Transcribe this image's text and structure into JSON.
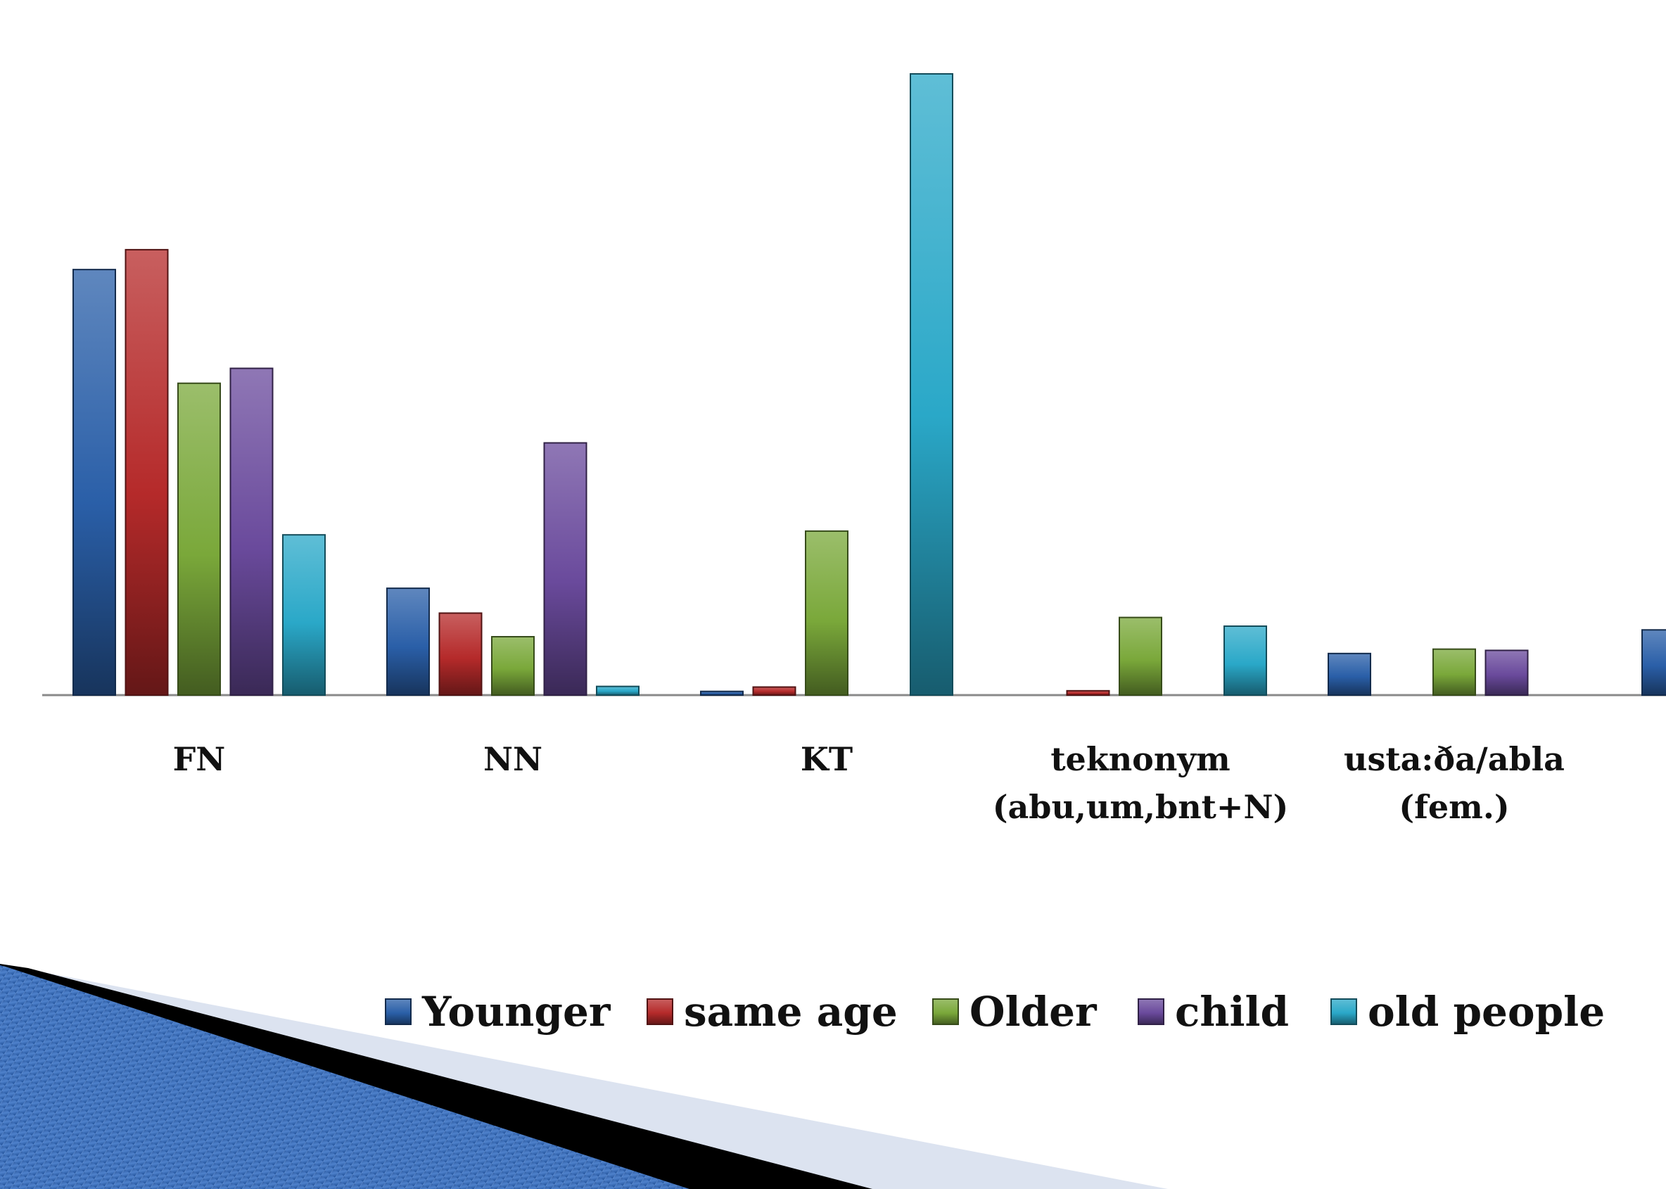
{
  "chart_data": {
    "type": "bar",
    "title": "",
    "xlabel": "",
    "ylabel": "",
    "ylim": [
      0,
      100
    ],
    "grid": false,
    "legend_position": "bottom",
    "categories": [
      [
        "FN"
      ],
      [
        "NN"
      ],
      [
        "KT"
      ],
      [
        "teknonym",
        "(abu,um,bnt+N)"
      ],
      [
        "usta:ða/abla",
        "(fem.)"
      ],
      [
        ""
      ]
    ],
    "series": [
      {
        "name": "Younger",
        "color": "#2a5fa8",
        "values": [
          68.5,
          17.2,
          0.6,
          0,
          6.7,
          10.5
        ]
      },
      {
        "name": "same age",
        "color": "#b52a2a",
        "values": [
          71.7,
          13.2,
          1.3,
          0.7,
          0,
          0
        ]
      },
      {
        "name": "Older",
        "color": "#7aa83a",
        "values": [
          50.2,
          9.4,
          26.4,
          12.5,
          7.4,
          0
        ]
      },
      {
        "name": "child",
        "color": "#6a4a9c",
        "values": [
          52.6,
          40.6,
          0,
          0,
          7.2,
          0
        ]
      },
      {
        "name": "old people",
        "color": "#2aa8c8",
        "values": [
          25.8,
          1.4,
          100,
          11.1,
          0,
          0
        ]
      }
    ]
  }
}
